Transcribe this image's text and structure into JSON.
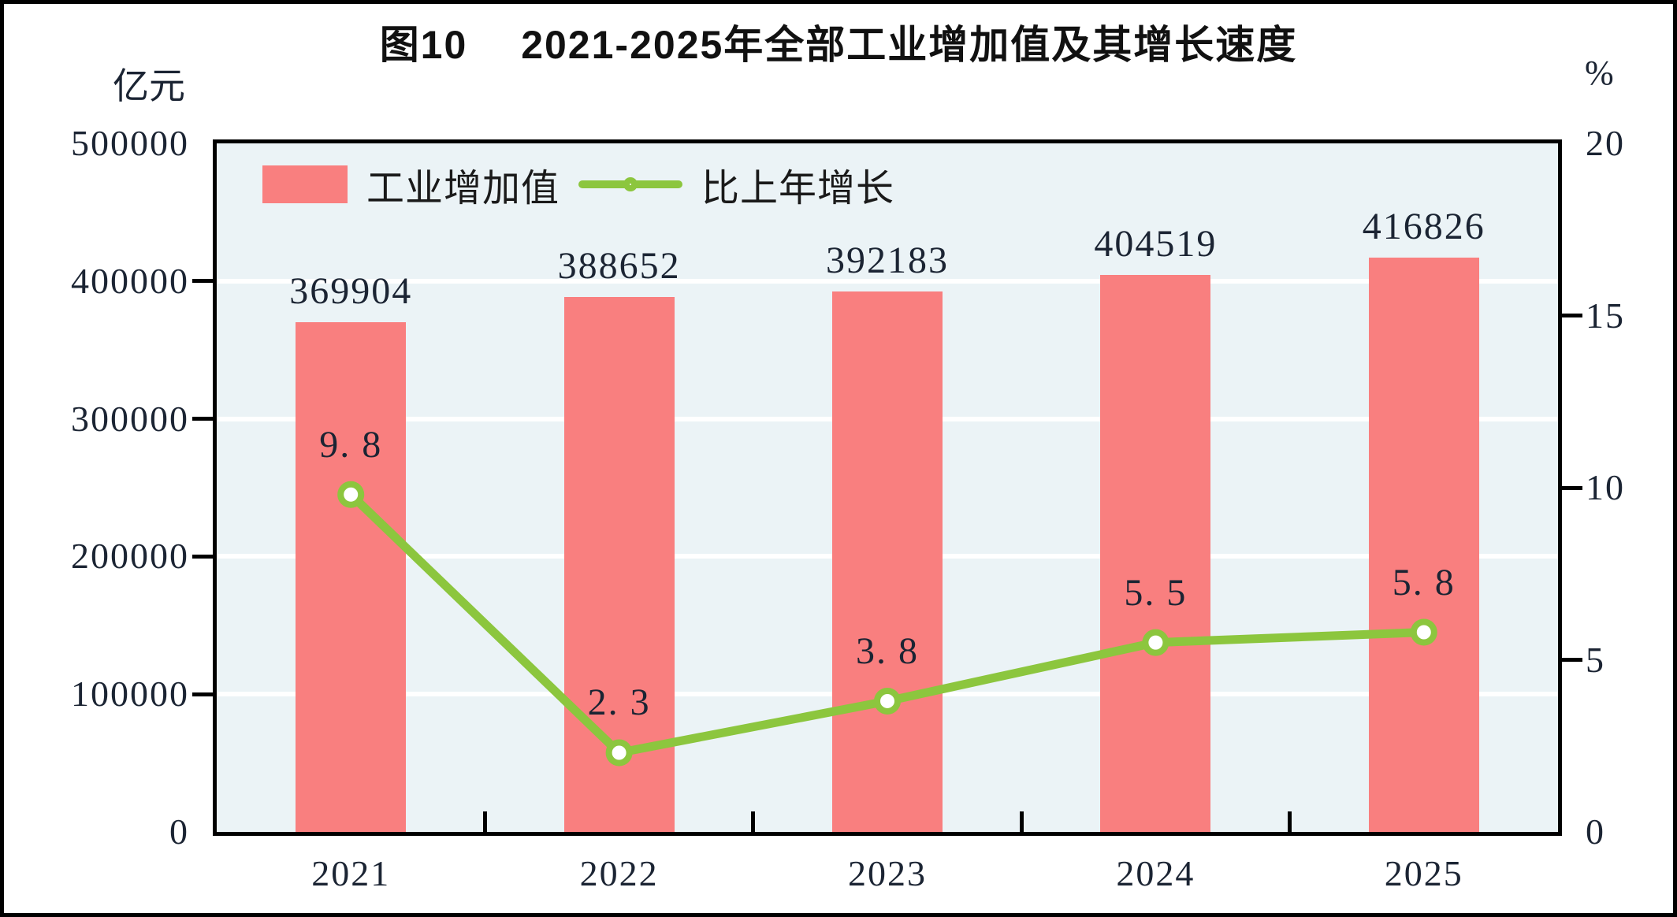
{
  "figure": {
    "title": "图10　 2021-2025年全部工业增加值及其增长速度",
    "left_axis_unit": "亿元",
    "right_axis_unit": "%"
  },
  "legend": {
    "bars_label": "工业增加值",
    "line_label": "比上年增长"
  },
  "colors": {
    "bar": "#F97F7F",
    "line": "#8CC63E",
    "marker_fill": "#FFFFFF",
    "plot_bg": "#EBF3F6",
    "gridline": "#FFFFFF",
    "axis": "#000000",
    "text": "#1B2433"
  },
  "chart_data": {
    "type": "bar+line",
    "title": "图10　2021-2025年全部工业增加值及其增长速度",
    "categories": [
      "2021",
      "2022",
      "2023",
      "2024",
      "2025"
    ],
    "series": [
      {
        "name": "工业增加值",
        "type": "bar",
        "axis": "left",
        "unit": "亿元",
        "values": [
          369904,
          388652,
          392183,
          404519,
          416826
        ]
      },
      {
        "name": "比上年增长",
        "type": "line",
        "axis": "right",
        "unit": "%",
        "values": [
          9.8,
          2.3,
          3.8,
          5.5,
          5.8
        ]
      }
    ],
    "left_axis": {
      "unit": "亿元",
      "min": 0,
      "max": 500000,
      "ticks": [
        0,
        100000,
        200000,
        300000,
        400000,
        500000
      ]
    },
    "right_axis": {
      "unit": "%",
      "min": 0,
      "max": 20,
      "ticks": [
        0,
        5,
        10,
        15,
        20
      ]
    },
    "grid": "horizontal",
    "legend_position": "top-left-inside",
    "plot_background": "#EBF3F6"
  }
}
